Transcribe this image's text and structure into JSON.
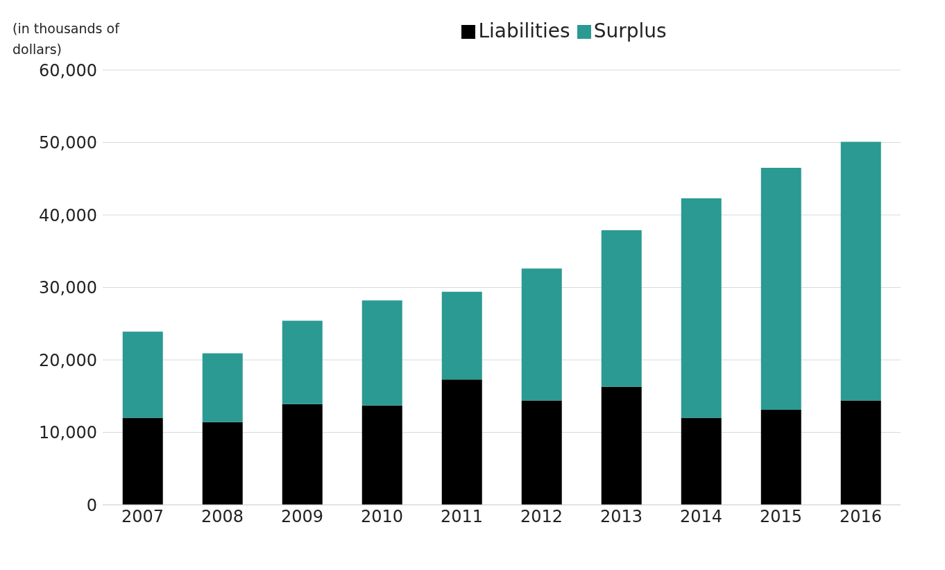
{
  "chart_data": {
    "type": "bar",
    "stacked": true,
    "ylabel": "(in thousands of dollars)",
    "categories": [
      "2007",
      "2008",
      "2009",
      "2010",
      "2011",
      "2012",
      "2013",
      "2014",
      "2015",
      "2016"
    ],
    "series": [
      {
        "name": "Liabilities",
        "color": "#000000",
        "values": [
          12000,
          11400,
          13900,
          13700,
          17300,
          14400,
          16300,
          12000,
          13100,
          14400
        ]
      },
      {
        "name": "Surplus",
        "color": "#2a9a92",
        "values": [
          11900,
          9500,
          11500,
          14500,
          12100,
          18200,
          21600,
          30300,
          33400,
          35700
        ]
      }
    ],
    "ylim": [
      0,
      60000
    ],
    "yticks": [
      {
        "value": 0,
        "label": "0"
      },
      {
        "value": 10000,
        "label": "10,000"
      },
      {
        "value": 20000,
        "label": "20,000"
      },
      {
        "value": 30000,
        "label": "30,000"
      },
      {
        "value": 40000,
        "label": "40,000"
      },
      {
        "value": 50000,
        "label": "50,000"
      },
      {
        "value": 60000,
        "label": "60,000"
      }
    ],
    "grid": "y",
    "legend": "top"
  }
}
